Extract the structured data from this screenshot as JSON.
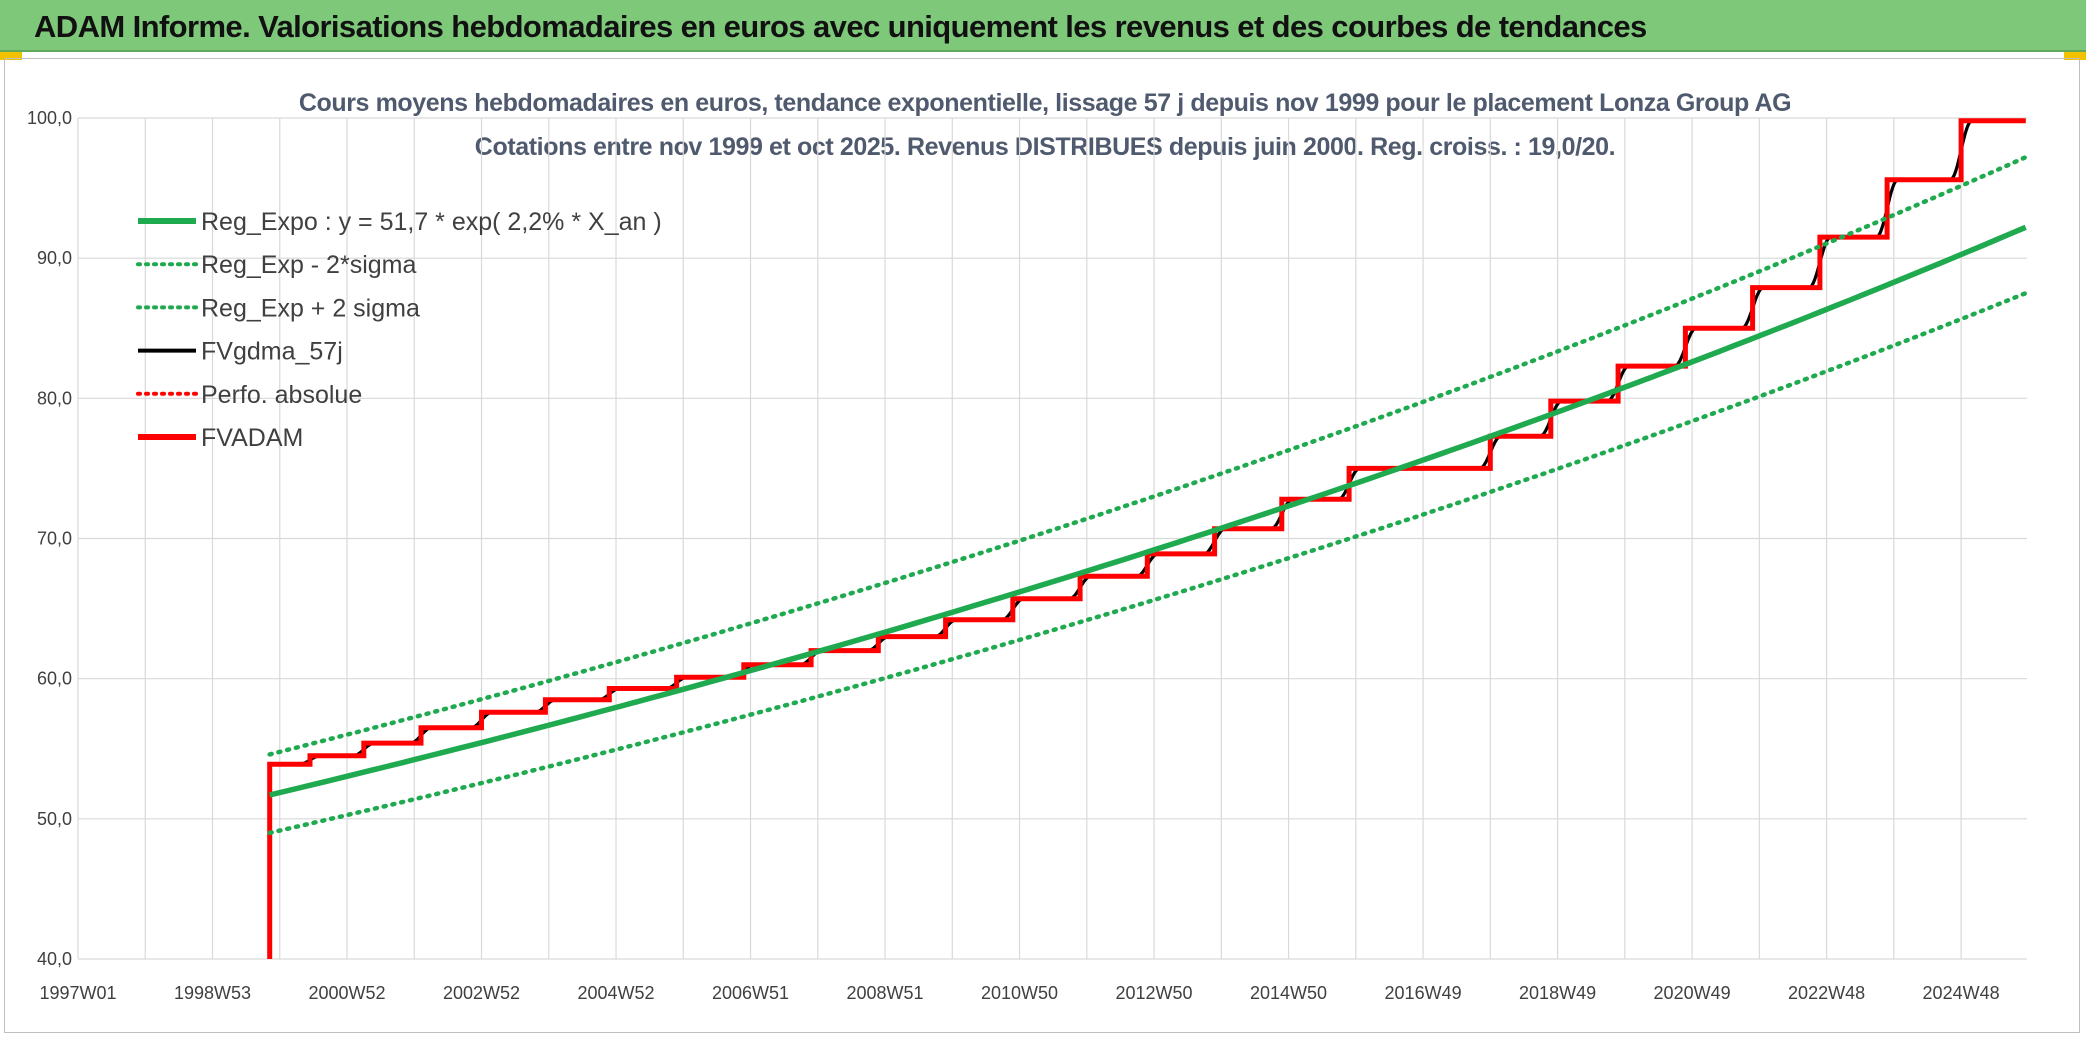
{
  "banner": {
    "title": "ADAM Informe. Valorisations hebdomadaires en euros avec uniquement les revenus et des courbes de tendances"
  },
  "colors": {
    "banner_bg": "#7ec87a",
    "reg_expo": "#1faa50",
    "bands": "#1faa50",
    "fvgdma": "#000000",
    "perfo": "#ff0000",
    "fvadam": "#ff0000",
    "grid": "#d9d9d9"
  },
  "chart_data": {
    "type": "line",
    "title": "Cours moyens hebdomadaires en euros, tendance exponentielle, lissage 57 j depuis nov 1999 pour le placement Lonza Group AG",
    "subtitle": "Cotations entre nov 1999 et oct 2025. Revenus DISTRIBUES depuis juin 2000. Reg. croiss. : 19,0/20.",
    "x_tick_labels": [
      "1997W01",
      "1998W53",
      "2000W52",
      "2002W52",
      "2004W52",
      "2006W51",
      "2008W51",
      "2010W50",
      "2012W50",
      "2014W50",
      "2016W49",
      "2018W49",
      "2020W49",
      "2022W48",
      "2024W48"
    ],
    "x_unit": "year",
    "x_range": [
      1997.0,
      2025.98
    ],
    "ylim": [
      40,
      100
    ],
    "y_ticks": [
      "40,0",
      "50,0",
      "60,0",
      "70,0",
      "80,0",
      "90,0",
      "100,0"
    ],
    "grid": true,
    "legend_position": "top-left",
    "legend": [
      {
        "label": "Reg_Expo : y = 51,7 * exp( 2,2% *  X_an )",
        "style": "solid-thick",
        "color": "#1faa50"
      },
      {
        "label": "Reg_Exp - 2*sigma",
        "style": "dotted",
        "color": "#1faa50"
      },
      {
        "label": "Reg_Exp + 2 sigma",
        "style": "dotted",
        "color": "#1faa50"
      },
      {
        "label": "FVgdma_57j",
        "style": "solid",
        "color": "#000000"
      },
      {
        "label": "Perfo. absolue",
        "style": "dotted",
        "color": "#ff0000"
      },
      {
        "label": "FVADAM",
        "style": "solid-thick",
        "color": "#ff0000"
      }
    ],
    "series": [
      {
        "name": "Reg_Expo : y = 51,7 * exp( 2,2% *  X_an )",
        "type": "line",
        "x": [
          1999.85,
          2005.0,
          2010.0,
          2015.0,
          2020.0,
          2025.96
        ],
        "y": [
          51.7,
          57.8,
          64.6,
          72.5,
          81.3,
          92.2
        ]
      },
      {
        "name": "Reg_Exp - 2*sigma",
        "type": "line",
        "x": [
          1999.85,
          2005.0,
          2010.0,
          2015.0,
          2020.0,
          2025.96
        ],
        "y": [
          49.0,
          54.8,
          61.3,
          68.8,
          77.1,
          87.5
        ]
      },
      {
        "name": "Reg_Exp + 2 sigma",
        "type": "line",
        "x": [
          1999.85,
          2005.0,
          2010.0,
          2015.0,
          2020.0,
          2025.96
        ],
        "y": [
          54.6,
          60.9,
          68.1,
          76.4,
          85.7,
          97.2
        ]
      },
      {
        "name": "FVADAM",
        "type": "step",
        "x": [
          1999.85,
          1999.85,
          2000.45,
          2001.25,
          2002.1,
          2003.0,
          2003.95,
          2004.9,
          2005.9,
          2006.9,
          2007.9,
          2008.9,
          2009.9,
          2010.9,
          2011.9,
          2012.9,
          2013.9,
          2014.9,
          2015.9,
          2018.0,
          2018.9,
          2019.9,
          2020.9,
          2021.9,
          2022.9,
          2023.9,
          2025.0,
          2025.96
        ],
        "y": [
          40.0,
          53.9,
          54.5,
          55.4,
          56.5,
          57.6,
          58.5,
          59.3,
          60.1,
          61.0,
          62.0,
          63.0,
          64.2,
          65.7,
          67.3,
          68.9,
          70.7,
          72.8,
          75.0,
          77.3,
          79.8,
          82.3,
          85.0,
          87.9,
          91.5,
          95.6,
          99.8,
          99.8
        ]
      },
      {
        "name": "FVgdma_57j",
        "type": "smoothed-step",
        "follows": "FVADAM"
      }
    ]
  }
}
